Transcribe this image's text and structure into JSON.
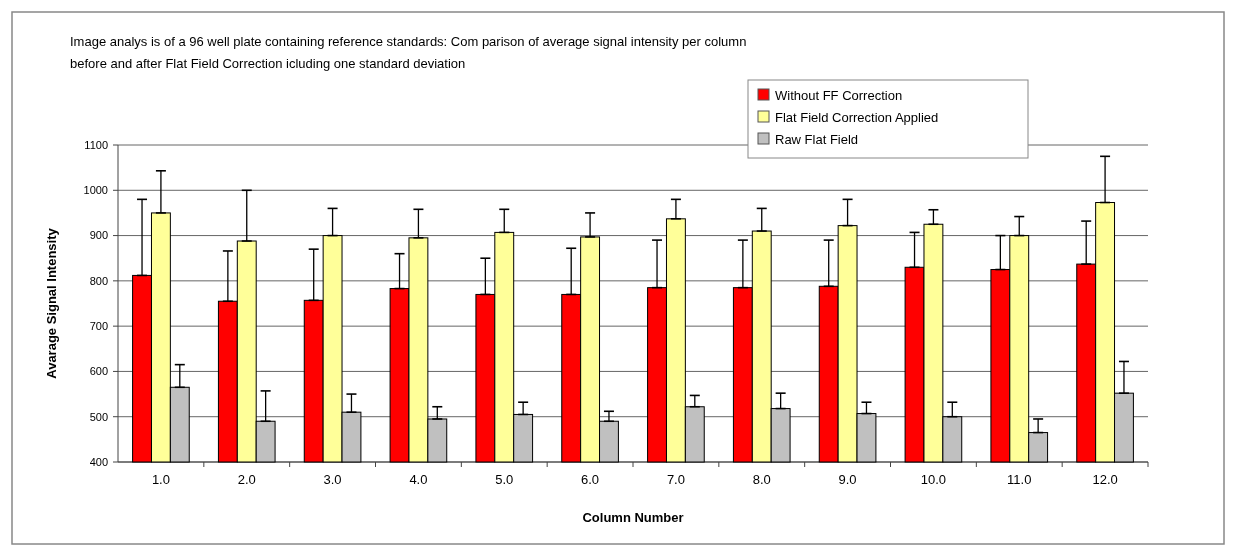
{
  "chart_data": {
    "type": "bar",
    "title": "Image analys is of a 96 well plate containing reference standards: Com parison of average signal intensity per column\nbefore and after Flat Field Correction icluding one standard deviation",
    "xlabel": "Column Number",
    "ylabel": "Avarage Signal Intensity",
    "categories": [
      "1.0",
      "2.0",
      "3.0",
      "4.0",
      "5.0",
      "6.0",
      "7.0",
      "8.0",
      "9.0",
      "10.0",
      "11.0",
      "12.0"
    ],
    "series": [
      {
        "name": "Without FF Correction",
        "color": "#ff0000",
        "values": [
          812,
          755,
          757,
          783,
          770,
          770,
          785,
          785,
          788,
          830,
          825,
          837
        ],
        "errors": [
          [
            812,
            980
          ],
          [
            755,
            866
          ],
          [
            757,
            870
          ],
          [
            783,
            860
          ],
          [
            770,
            850
          ],
          [
            770,
            872
          ],
          [
            785,
            890
          ],
          [
            785,
            890
          ],
          [
            788,
            890
          ],
          [
            830,
            907
          ],
          [
            825,
            900
          ],
          [
            837,
            932
          ]
        ]
      },
      {
        "name": "Flat Field Correction Applied",
        "color": "#ffff99",
        "values": [
          950,
          888,
          900,
          895,
          907,
          897,
          937,
          910,
          922,
          925,
          900,
          973
        ],
        "errors": [
          [
            950,
            1043
          ],
          [
            888,
            1000
          ],
          [
            900,
            960
          ],
          [
            895,
            958
          ],
          [
            907,
            958
          ],
          [
            897,
            950
          ],
          [
            937,
            980
          ],
          [
            910,
            960
          ],
          [
            922,
            980
          ],
          [
            925,
            957
          ],
          [
            900,
            942
          ],
          [
            973,
            1075
          ]
        ]
      },
      {
        "name": "Raw Flat Field",
        "color": "#c0c0c0",
        "values": [
          565,
          490,
          510,
          495,
          505,
          490,
          522,
          518,
          507,
          500,
          465,
          552
        ],
        "errors": [
          [
            565,
            615
          ],
          [
            490,
            557
          ],
          [
            510,
            550
          ],
          [
            495,
            522
          ],
          [
            505,
            532
          ],
          [
            490,
            512
          ],
          [
            522,
            547
          ],
          [
            518,
            552
          ],
          [
            507,
            532
          ],
          [
            500,
            532
          ],
          [
            465,
            495
          ],
          [
            552,
            622
          ]
        ]
      }
    ],
    "ylim": [
      400,
      1100
    ],
    "yticks": [
      400,
      500,
      600,
      700,
      800,
      900,
      1000,
      1100
    ],
    "grid": "y",
    "legend": "top right"
  }
}
